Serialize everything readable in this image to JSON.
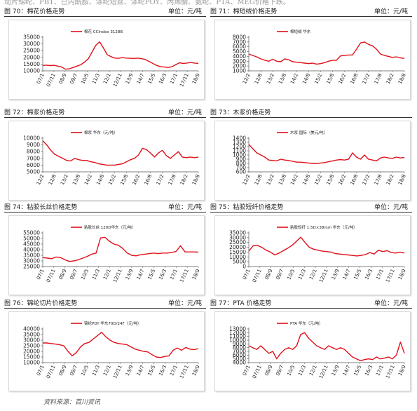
{
  "intro_text": "动片锦纶、PBT、已内酰胺、涤纶短丝、涤纶POY、丙烯腈、氨纶、PTA、MEG价格下跌。",
  "footer": {
    "source": "资料来源：百川资讯"
  },
  "colors": {
    "line": "#e0101a",
    "rule": "#333333"
  },
  "chart_data": [
    {
      "type": "line",
      "figure_label": "图 70：棉花价格走势",
      "unit": "单位：元/吨",
      "legend": "棉花 CCIndex 3128B",
      "ylim": [
        10000,
        35000
      ],
      "yticks": [
        10000,
        15000,
        20000,
        25000,
        30000,
        35000
      ],
      "xticks": [
        "07/1",
        "07/11",
        "08/9",
        "09/7",
        "10/5",
        "11/3",
        "12/1",
        "12/11",
        "13/9",
        "14/7",
        "15/5",
        "16/3",
        "17/1",
        "17/11",
        "18/9"
      ],
      "values": [
        14000,
        14200,
        13900,
        14100,
        13500,
        12800,
        11200,
        11500,
        12500,
        13500,
        14500,
        16500,
        19000,
        24000,
        29000,
        31500,
        27000,
        22000,
        20500,
        19500,
        19300,
        19800,
        19500,
        19300,
        19200,
        19500,
        19000,
        18500,
        17000,
        15500,
        14000,
        13200,
        12800,
        12500,
        13000,
        14500,
        16000,
        15500,
        15800,
        16200,
        15800,
        15500
      ]
    },
    {
      "type": "line",
      "figure_label": "图 71：棉短绒价格走势",
      "unit": "单位：元/吨",
      "legend": "棉短绒 华东",
      "ylim": [
        1000,
        8000
      ],
      "yticks": [
        1000,
        2000,
        3000,
        4000,
        5000,
        6000,
        7000,
        8000
      ],
      "xticks": [
        "12/2",
        "12/8",
        "13/2",
        "13/8",
        "14/2",
        "14/8",
        "15/2",
        "15/8",
        "16/2",
        "16/8",
        "17/2",
        "17/8",
        "18/2",
        "18/8"
      ],
      "values": [
        4500,
        4200,
        3900,
        3500,
        3200,
        3000,
        3400,
        3000,
        2900,
        3500,
        3300,
        2900,
        2800,
        2700,
        2600,
        2500,
        2600,
        2400,
        2500,
        2700,
        3000,
        3200,
        3200,
        4100,
        4200,
        4300,
        4300,
        5500,
        6800,
        7000,
        6500,
        6200,
        5500,
        4500,
        4200,
        4000,
        3800,
        3900,
        3700,
        3600
      ]
    },
    {
      "type": "line",
      "figure_label": "图 72：棉浆价格走势",
      "unit": "单位：元/吨",
      "legend": "棉浆 华东（元/吨）",
      "ylim": [
        5000,
        10000
      ],
      "yticks": [
        5000,
        6000,
        7000,
        8000,
        9000,
        10000
      ],
      "xticks": [
        "12/2",
        "12/8",
        "13/2",
        "13/8",
        "14/2",
        "14/8",
        "15/2",
        "15/8",
        "16/2",
        "16/8",
        "17/2",
        "17/8",
        "18/2",
        "18/8"
      ],
      "values": [
        9600,
        9000,
        8200,
        7600,
        7300,
        7000,
        6700,
        6600,
        7000,
        6800,
        6700,
        6700,
        6500,
        6400,
        6200,
        6100,
        6000,
        6000,
        6000,
        6100,
        6200,
        6500,
        6800,
        7000,
        7500,
        8500,
        8300,
        7800,
        7200,
        7800,
        8200,
        7400,
        7000,
        7500,
        8000,
        7200,
        7100,
        7200,
        7100,
        7200
      ]
    },
    {
      "type": "line",
      "figure_label": "图 73：木浆价格走势",
      "unit": "",
      "legend": "木浆 国际（美元/吨）",
      "ylim": [
        600,
        1400
      ],
      "yticks": [
        600,
        700,
        800,
        900,
        1000,
        1100,
        1200,
        1300,
        1400
      ],
      "xticks": [
        "12/2",
        "12/8",
        "13/2",
        "13/8",
        "14/2",
        "14/8",
        "15/2",
        "15/8",
        "16/2",
        "16/8",
        "17/2",
        "17/8",
        "18/2",
        "18/8"
      ],
      "values": [
        1250,
        1150,
        1050,
        1000,
        950,
        880,
        870,
        860,
        900,
        880,
        870,
        850,
        830,
        830,
        820,
        810,
        800,
        800,
        810,
        820,
        840,
        860,
        880,
        890,
        880,
        900,
        1050,
        950,
        900,
        1000,
        900,
        880,
        860,
        930,
        950,
        930,
        920,
        950,
        930,
        940
      ]
    },
    {
      "type": "line",
      "figure_label": "图 74：粘胶长丝价格走势",
      "unit": "单位：元/吨",
      "legend": "粘胶长丝 120D华东（元/吨）",
      "ylim": [
        25000,
        55000
      ],
      "yticks": [
        25000,
        30000,
        35000,
        40000,
        45000,
        50000,
        55000
      ],
      "xticks": [
        "07/1",
        "07/11",
        "08/9",
        "09/7",
        "10/5",
        "11/3",
        "12/1",
        "12/11",
        "13/9",
        "14/7",
        "15/5",
        "16/3",
        "17/1",
        "17/11",
        "18/9"
      ],
      "values": [
        33000,
        32500,
        32000,
        33500,
        33000,
        31000,
        29500,
        30000,
        31000,
        32500,
        34000,
        36000,
        37000,
        50500,
        51000,
        47500,
        45000,
        44000,
        41000,
        37000,
        35000,
        34500,
        35500,
        36000,
        36500,
        37000,
        36500,
        37000,
        37000,
        37500,
        38500,
        43500,
        38000,
        38000,
        38000,
        37800
      ]
    },
    {
      "type": "line",
      "figure_label": "图 75：粘胶短纤价格走势",
      "unit": "单位：元/吨",
      "legend": "粘胶短纤 1.5D×38mm 华东（元/吨）",
      "ylim": [
        0,
        35000
      ],
      "yticks": [
        0,
        5000,
        10000,
        15000,
        20000,
        25000,
        30000,
        35000
      ],
      "xticks": [
        "07/1",
        "07/11",
        "08/9",
        "09/7",
        "10/5",
        "11/3",
        "12/1",
        "12/11",
        "13/9",
        "14/7",
        "15/5",
        "16/3",
        "17/1",
        "17/11",
        "18/9"
      ],
      "values": [
        16000,
        21500,
        22000,
        20000,
        17000,
        15000,
        12000,
        14000,
        16500,
        19000,
        22000,
        26000,
        30500,
        25000,
        20000,
        18000,
        17000,
        16000,
        15500,
        15000,
        13500,
        13000,
        12500,
        12000,
        11500,
        11000,
        11500,
        12500,
        14500,
        13000,
        17000,
        15500,
        16500,
        14500,
        14000,
        15000,
        14000
      ]
    },
    {
      "type": "line",
      "figure_label": "图 76：锦纶切片价格走势",
      "unit": "单位：元/吨",
      "legend": "锦纶PDY 华东70D/24F（元/吨）",
      "ylim": [
        10000,
        40000
      ],
      "yticks": [
        10000,
        15000,
        20000,
        25000,
        30000,
        35000,
        40000
      ],
      "xticks": [
        "07/1",
        "07/11",
        "08/9",
        "09/7",
        "10/5",
        "11/3",
        "12/1",
        "12/11",
        "13/9",
        "14/7",
        "15/5",
        "16/3",
        "17/1",
        "17/11",
        "18/9"
      ],
      "values": [
        27500,
        27500,
        27000,
        26500,
        26000,
        25000,
        20000,
        16000,
        19000,
        24000,
        27000,
        28000,
        31000,
        34000,
        37000,
        33000,
        30000,
        28000,
        27000,
        26500,
        26000,
        24000,
        22000,
        21000,
        20000,
        19500,
        17000,
        15000,
        14500,
        15500,
        16000,
        21000,
        23000,
        21000,
        23500,
        22000,
        21500,
        22500
      ]
    },
    {
      "type": "line",
      "figure_label": "图 77：PTA 价格走势",
      "unit": "单位：元/吨",
      "legend": "PTA 华东（元/吨）",
      "ylim": [
        4000,
        13000
      ],
      "yticks": [
        4000,
        5000,
        6000,
        7000,
        8000,
        9000,
        10000,
        11000,
        12000,
        13000
      ],
      "xticks": [
        "07/1",
        "07/11",
        "08/9",
        "09/7",
        "10/5",
        "11/3",
        "12/1",
        "12/11",
        "13/9",
        "14/7",
        "15/5",
        "16/3",
        "17/1",
        "17/11",
        "18/9"
      ],
      "values": [
        8500,
        8000,
        7500,
        8500,
        7500,
        6500,
        7000,
        5000,
        6500,
        7500,
        8000,
        7500,
        8500,
        11500,
        12000,
        10500,
        9500,
        8500,
        8000,
        7500,
        8500,
        8000,
        7500,
        8000,
        7500,
        6500,
        5500,
        5000,
        4500,
        4800,
        5000,
        4800,
        5500,
        5000,
        5200,
        5500,
        5000,
        6000,
        9500,
        6500
      ]
    }
  ]
}
